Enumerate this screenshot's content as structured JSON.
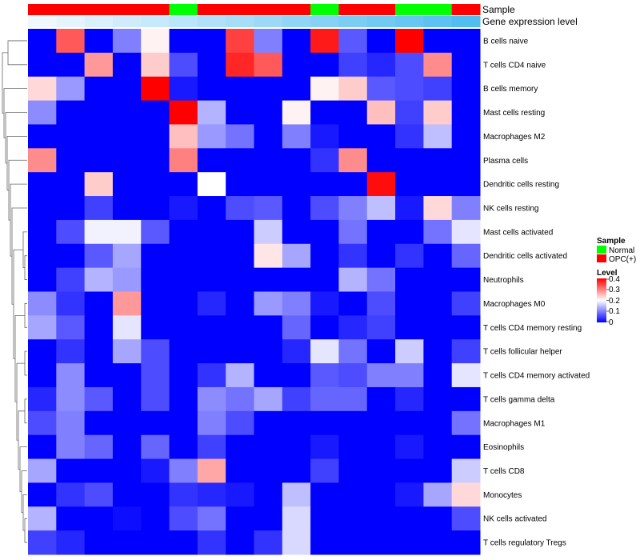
{
  "chart_data": {
    "type": "heatmap",
    "title": "",
    "colors": {
      "low": "#0000ff",
      "mid": "#ffffff",
      "high": "#ff0000",
      "normal": "#00ff00",
      "opc": "#ff0000",
      "dendrogram": "#666666"
    },
    "annotation_rows": [
      "Sample",
      "Gene expression level"
    ],
    "sample_groups": [
      "OPC(+)",
      "OPC(+)",
      "OPC(+)",
      "OPC(+)",
      "OPC(+)",
      "Normal",
      "OPC(+)",
      "OPC(+)",
      "OPC(+)",
      "OPC(+)",
      "Normal",
      "OPC(+)",
      "OPC(+)",
      "Normal",
      "Normal",
      "OPC(+)"
    ],
    "gene_expression_level": [
      0.02,
      0.05,
      0.08,
      0.11,
      0.14,
      0.17,
      0.2,
      0.23,
      0.26,
      0.29,
      0.32,
      0.35,
      0.38,
      0.41,
      0.44,
      0.47
    ],
    "row_labels": [
      "B cells naive",
      "T cells CD4 naive",
      "B cells memory",
      "Mast cells resting",
      "Macrophages M2",
      "Plasma cells",
      "Dendritic cells resting",
      "NK cells resting",
      "Mast cells activated",
      "Dendritic cells activated",
      "Neutrophils",
      "Macrophages M0",
      "T cells CD4 memory resting",
      "T cells follicular helper",
      "T cells CD4 memory activated",
      "T cells gamma delta",
      "Macrophages M1",
      "Eosinophils",
      "T cells CD8",
      "Monocytes",
      "NK cells activated",
      "T cells regulatory  Tregs"
    ],
    "values": [
      [
        0,
        0.33,
        0,
        0.1,
        0.21,
        0,
        0,
        0.35,
        0.1,
        0,
        0.38,
        0.07,
        0,
        0.4,
        0,
        0
      ],
      [
        0,
        0,
        0.28,
        0,
        0.24,
        0.06,
        0,
        0.37,
        0.33,
        0,
        0,
        0.05,
        0.03,
        0.06,
        0.29,
        0
      ],
      [
        0.23,
        0.12,
        0,
        0,
        0.4,
        0.02,
        0,
        0,
        0,
        0,
        0.21,
        0.24,
        0.07,
        0.06,
        0.05,
        0
      ],
      [
        0.11,
        0,
        0,
        0,
        0,
        0.4,
        0.14,
        0,
        0,
        0.21,
        0,
        0,
        0.25,
        0.05,
        0.24,
        0
      ],
      [
        0,
        0,
        0,
        0,
        0,
        0.25,
        0.12,
        0.09,
        0,
        0.1,
        0.02,
        0,
        0,
        0.04,
        0.15,
        0
      ],
      [
        0.29,
        0,
        0,
        0,
        0,
        0.3,
        0,
        0,
        0,
        0,
        0.04,
        0.29,
        0,
        0,
        0,
        0
      ],
      [
        0,
        0,
        0.24,
        0,
        0,
        0,
        0.2,
        0,
        0,
        0,
        0,
        0,
        0.39,
        0,
        0,
        0
      ],
      [
        0,
        0,
        0.05,
        0,
        0,
        0.02,
        0,
        0.06,
        0.07,
        0,
        0.06,
        0.1,
        0.15,
        0.02,
        0.23,
        0.1
      ],
      [
        0,
        0.06,
        0.19,
        0.19,
        0.07,
        0,
        0,
        0,
        0.16,
        0,
        0,
        0.09,
        0,
        0,
        0.09,
        0.18
      ],
      [
        0,
        0,
        0.07,
        0.13,
        0,
        0,
        0,
        0,
        0.22,
        0.13,
        0,
        0.04,
        0,
        0.04,
        0,
        0.08
      ],
      [
        0,
        0.05,
        0.14,
        0.12,
        0,
        0,
        0,
        0,
        0,
        0,
        0,
        0.14,
        0.09,
        0,
        0,
        0
      ],
      [
        0.11,
        0.04,
        0,
        0.28,
        0,
        0,
        0.03,
        0,
        0.12,
        0.1,
        0.02,
        0,
        0.06,
        0,
        0,
        0.05
      ],
      [
        0.13,
        0.07,
        0,
        0.18,
        0,
        0,
        0,
        0,
        0,
        0.08,
        0,
        0.03,
        0.05,
        0,
        0,
        0
      ],
      [
        0,
        0.04,
        0,
        0.13,
        0.06,
        0,
        0,
        0,
        0,
        0.03,
        0.18,
        0.09,
        0,
        0.16,
        0,
        0.05
      ],
      [
        0,
        0.11,
        0,
        0,
        0.06,
        0,
        0.04,
        0.14,
        0,
        0,
        0.07,
        0.06,
        0.1,
        0.1,
        0,
        0.18
      ],
      [
        0.03,
        0.11,
        0.07,
        0,
        0.06,
        0,
        0.11,
        0.09,
        0.13,
        0.05,
        0.08,
        0.08,
        0,
        0.03,
        0,
        0
      ],
      [
        0.06,
        0.1,
        0,
        0,
        0,
        0,
        0.1,
        0.06,
        0,
        0,
        0,
        0,
        0,
        0,
        0,
        0.09
      ],
      [
        0,
        0.1,
        0.08,
        0,
        0.08,
        0,
        0.05,
        0,
        0,
        0,
        0.02,
        0,
        0,
        0.02,
        0,
        0
      ],
      [
        0.13,
        0,
        0,
        0,
        0.02,
        0.1,
        0.27,
        0,
        0,
        0,
        0.05,
        0,
        0,
        0,
        0,
        0.16
      ],
      [
        0,
        0.04,
        0.06,
        0,
        0,
        0.04,
        0.03,
        0.02,
        0,
        0.15,
        0,
        0,
        0,
        0.02,
        0.13,
        0.23
      ],
      [
        0.14,
        0,
        0,
        0.01,
        0,
        0.06,
        0.09,
        0,
        0,
        0.17,
        0,
        0,
        0,
        0,
        0,
        0.06
      ],
      [
        0.05,
        0.03,
        0,
        0,
        0,
        0,
        0.04,
        0,
        0.04,
        0.17,
        0,
        0,
        0,
        0,
        0,
        0
      ]
    ],
    "legend": {
      "sample_title": "Sample",
      "sample_entries": [
        "Normal",
        "OPC(+)"
      ],
      "level_title": "Level",
      "level_ticks": [
        "0.4",
        "0.3",
        "0.2",
        "0.1",
        "0"
      ],
      "level_range": [
        0,
        0.4
      ],
      "placement": "right"
    }
  }
}
